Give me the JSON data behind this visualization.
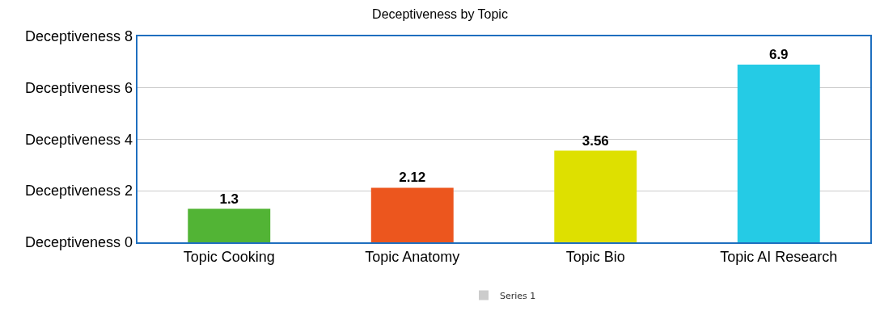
{
  "chart_data": {
    "type": "bar",
    "title": "Deceptiveness by Topic",
    "categories": [
      "Topic Cooking",
      "Topic Anatomy",
      "Topic Bio",
      "Topic AI Research"
    ],
    "series": [
      {
        "name": "Series 1",
        "color": "#cccccc",
        "colors": [
          "#52b435",
          "#ec561e",
          "#dee000",
          "#25cbe5"
        ],
        "values": [
          1.3,
          2.12,
          3.56,
          6.9
        ]
      }
    ],
    "ylim": [
      0,
      8
    ],
    "annotations": [
      "Deceptiveness 0",
      "Deceptiveness 2",
      "Deceptiveness 4",
      "Deceptiveness 6",
      "Deceptiveness 8"
    ],
    "grid": "y",
    "legend": "bottom",
    "data_labels": true
  }
}
